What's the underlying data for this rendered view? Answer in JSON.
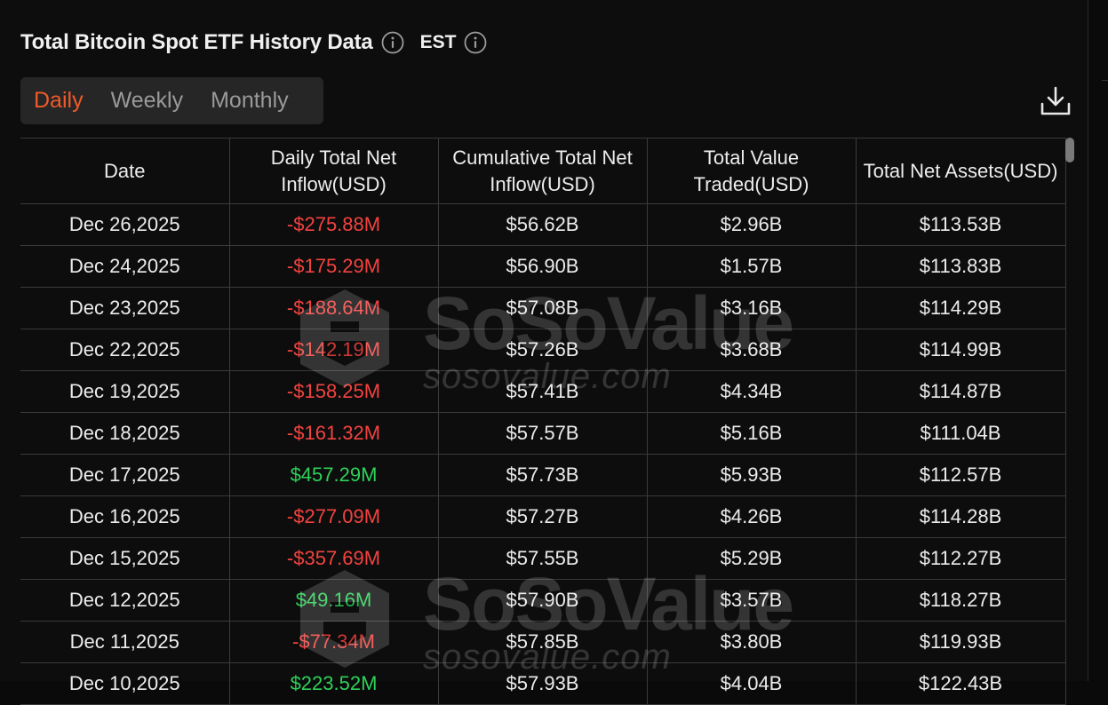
{
  "title": "Total Bitcoin Spot ETF History Data",
  "timezone": "EST",
  "tabs": [
    {
      "label": "Daily",
      "active": true
    },
    {
      "label": "Weekly",
      "active": false
    },
    {
      "label": "Monthly",
      "active": false
    }
  ],
  "columns": [
    "Date",
    "Daily Total Net Inflow(USD)",
    "Cumulative Total Net Inflow(USD)",
    "Total Value Traded(USD)",
    "Total Net Assets(USD)"
  ],
  "rows": [
    {
      "date": "Dec 26,2025",
      "daily_net_inflow": "-$275.88M",
      "flow_direction": "negative",
      "cumulative_net_inflow": "$56.62B",
      "value_traded": "$2.96B",
      "net_assets": "$113.53B"
    },
    {
      "date": "Dec 24,2025",
      "daily_net_inflow": "-$175.29M",
      "flow_direction": "negative",
      "cumulative_net_inflow": "$56.90B",
      "value_traded": "$1.57B",
      "net_assets": "$113.83B"
    },
    {
      "date": "Dec 23,2025",
      "daily_net_inflow": "-$188.64M",
      "flow_direction": "negative",
      "cumulative_net_inflow": "$57.08B",
      "value_traded": "$3.16B",
      "net_assets": "$114.29B"
    },
    {
      "date": "Dec 22,2025",
      "daily_net_inflow": "-$142.19M",
      "flow_direction": "negative",
      "cumulative_net_inflow": "$57.26B",
      "value_traded": "$3.68B",
      "net_assets": "$114.99B"
    },
    {
      "date": "Dec 19,2025",
      "daily_net_inflow": "-$158.25M",
      "flow_direction": "negative",
      "cumulative_net_inflow": "$57.41B",
      "value_traded": "$4.34B",
      "net_assets": "$114.87B"
    },
    {
      "date": "Dec 18,2025",
      "daily_net_inflow": "-$161.32M",
      "flow_direction": "negative",
      "cumulative_net_inflow": "$57.57B",
      "value_traded": "$5.16B",
      "net_assets": "$111.04B"
    },
    {
      "date": "Dec 17,2025",
      "daily_net_inflow": "$457.29M",
      "flow_direction": "positive",
      "cumulative_net_inflow": "$57.73B",
      "value_traded": "$5.93B",
      "net_assets": "$112.57B"
    },
    {
      "date": "Dec 16,2025",
      "daily_net_inflow": "-$277.09M",
      "flow_direction": "negative",
      "cumulative_net_inflow": "$57.27B",
      "value_traded": "$4.26B",
      "net_assets": "$114.28B"
    },
    {
      "date": "Dec 15,2025",
      "daily_net_inflow": "-$357.69M",
      "flow_direction": "negative",
      "cumulative_net_inflow": "$57.55B",
      "value_traded": "$5.29B",
      "net_assets": "$112.27B"
    },
    {
      "date": "Dec 12,2025",
      "daily_net_inflow": "$49.16M",
      "flow_direction": "positive",
      "cumulative_net_inflow": "$57.90B",
      "value_traded": "$3.57B",
      "net_assets": "$118.27B"
    },
    {
      "date": "Dec 11,2025",
      "daily_net_inflow": "-$77.34M",
      "flow_direction": "negative",
      "cumulative_net_inflow": "$57.85B",
      "value_traded": "$3.80B",
      "net_assets": "$119.93B"
    },
    {
      "date": "Dec 10,2025",
      "daily_net_inflow": "$223.52M",
      "flow_direction": "positive",
      "cumulative_net_inflow": "$57.93B",
      "value_traded": "$4.04B",
      "net_assets": "$122.43B"
    }
  ],
  "watermark": {
    "brand": "SoSoValue",
    "url": "sosovalue.com"
  },
  "icons": {
    "info": "info-circle-icon",
    "download": "download-icon"
  },
  "colors": {
    "accent": "#f15a29",
    "negative": "#f2433f",
    "positive": "#2ed158",
    "background": "#0d0d0d",
    "tab_background": "#262626",
    "border": "#3a3a3a"
  }
}
